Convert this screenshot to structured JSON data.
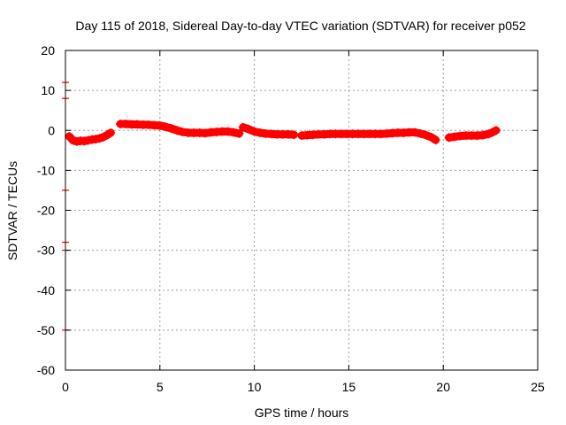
{
  "chart_data": {
    "type": "scatter",
    "title": "Day 115 of 2018, Sidereal Day-to-day VTEC variation (SDTVAR) for receiver p052",
    "xlabel": "GPS time / hours",
    "ylabel": "SDTVAR / TECUs",
    "xlim": [
      0,
      25
    ],
    "ylim": [
      -60,
      20
    ],
    "xticks": [
      0,
      5,
      10,
      15,
      20,
      25
    ],
    "yticks": [
      -60,
      -50,
      -40,
      -30,
      -20,
      -10,
      0,
      10,
      20
    ],
    "grid": true,
    "series_color": "#ff0000",
    "series": [
      {
        "name": "SDTVAR",
        "marker": "plus",
        "segments": [
          {
            "x": [
              0.2,
              0.4,
              0.6,
              0.8,
              1.0,
              1.2,
              1.4,
              1.6,
              1.8,
              2.0,
              2.2,
              2.4
            ],
            "y": [
              -1.5,
              -2.5,
              -2.8,
              -2.6,
              -2.7,
              -2.5,
              -2.3,
              -2.2,
              -2.0,
              -1.7,
              -1.2,
              -0.6
            ]
          },
          {
            "x": [
              2.9,
              3.2,
              3.5,
              3.8,
              4.1,
              4.4,
              4.7,
              5.0,
              5.3,
              5.6,
              5.9,
              6.2,
              6.5,
              6.8,
              7.1,
              7.4,
              7.7,
              8.0,
              8.3,
              8.6,
              8.9,
              9.2
            ],
            "y": [
              1.6,
              1.6,
              1.5,
              1.5,
              1.4,
              1.4,
              1.3,
              1.2,
              0.9,
              0.5,
              0.0,
              -0.4,
              -0.6,
              -0.6,
              -0.6,
              -0.7,
              -0.5,
              -0.4,
              -0.3,
              -0.3,
              -0.5,
              -0.8
            ]
          },
          {
            "x": [
              9.4,
              9.7,
              10.0,
              10.3,
              10.6,
              10.9,
              11.2,
              11.5,
              11.8,
              12.1
            ],
            "y": [
              0.8,
              0.3,
              -0.3,
              -0.6,
              -0.8,
              -0.9,
              -1.0,
              -1.0,
              -1.0,
              -1.1
            ]
          },
          {
            "x": [
              12.5,
              12.8,
              13.1,
              13.4,
              13.7,
              14.0,
              14.3,
              14.6,
              14.9,
              15.2,
              15.5,
              15.8,
              16.1,
              16.4,
              16.7,
              17.0,
              17.3,
              17.6,
              17.9,
              18.2,
              18.5,
              18.8,
              19.1,
              19.4,
              19.6
            ],
            "y": [
              -1.3,
              -1.2,
              -1.1,
              -1.0,
              -1.0,
              -0.9,
              -0.9,
              -0.9,
              -0.9,
              -0.9,
              -0.9,
              -0.9,
              -0.9,
              -0.9,
              -0.9,
              -0.8,
              -0.7,
              -0.6,
              -0.6,
              -0.5,
              -0.5,
              -0.8,
              -1.2,
              -1.8,
              -2.4
            ]
          },
          {
            "x": [
              20.3,
              20.6,
              20.9,
              21.2,
              21.5,
              21.8,
              22.1,
              22.4,
              22.6,
              22.8
            ],
            "y": [
              -1.8,
              -1.6,
              -1.4,
              -1.3,
              -1.3,
              -1.3,
              -1.2,
              -0.9,
              -0.5,
              0.0
            ]
          }
        ]
      }
    ],
    "outliers": {
      "x": [
        0,
        0,
        0,
        0,
        0,
        0
      ],
      "y": [
        12,
        8,
        -15,
        -28,
        -30,
        -50
      ]
    }
  }
}
